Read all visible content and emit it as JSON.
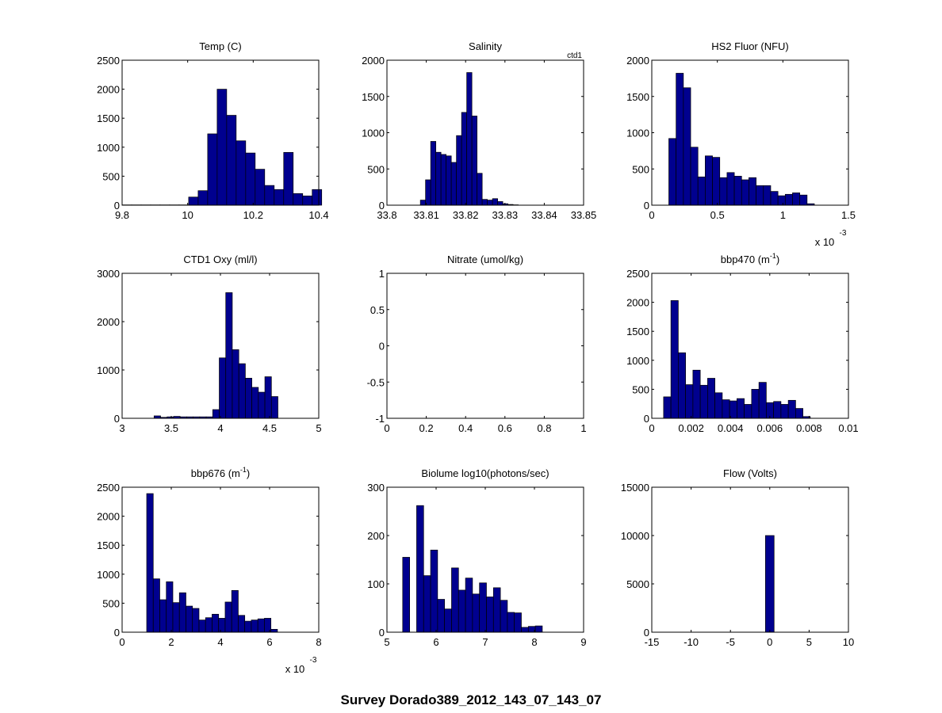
{
  "figure": {
    "suptitle": "Survey Dorado389_2012_143_07_143_07",
    "bar_color": "#00008f"
  },
  "chart_data": [
    {
      "type": "bar",
      "title": "Temp (C)",
      "xlim": [
        9.8,
        10.4
      ],
      "xticks": [
        "9.8",
        "10",
        "10.2",
        "10.4"
      ],
      "ylim": [
        0,
        2500
      ],
      "yticks": [
        "0",
        "500",
        "1000",
        "1500",
        "2000",
        "2500"
      ],
      "x_multiplier": "",
      "corner_label": "",
      "bin_start": 9.8,
      "bin_width": 0.029,
      "values": [
        5,
        5,
        5,
        5,
        5,
        5,
        5,
        140,
        250,
        1230,
        2000,
        1550,
        1110,
        900,
        620,
        340,
        270,
        910,
        200,
        160,
        270
      ]
    },
    {
      "type": "bar",
      "title": "Salinity",
      "xlim": [
        33.8,
        33.85
      ],
      "xticks": [
        "33.8",
        "33.81",
        "33.82",
        "33.83",
        "33.84",
        "33.85"
      ],
      "ylim": [
        0,
        2000
      ],
      "yticks": [
        "0",
        "500",
        "1000",
        "1500",
        "2000"
      ],
      "x_multiplier": "",
      "corner_label": "ctd1",
      "bin_start": 33.8085,
      "bin_width": 0.00131,
      "values": [
        70,
        350,
        880,
        730,
        700,
        680,
        590,
        960,
        1280,
        1830,
        1230,
        440,
        80,
        70,
        90,
        50,
        20,
        10,
        5
      ]
    },
    {
      "type": "bar",
      "title": "HS2 Fluor (NFU)",
      "xlim": [
        0,
        1.5
      ],
      "xticks": [
        "0",
        "0.5",
        "1",
        "1.5"
      ],
      "ylim": [
        0,
        2000
      ],
      "yticks": [
        "0",
        "500",
        "1000",
        "1500",
        "2000"
      ],
      "x_multiplier": "x 10",
      "x_multiplier_exp": "-3",
      "corner_label": "",
      "bin_start": 0.13,
      "bin_width": 0.0555,
      "values": [
        920,
        1820,
        1620,
        800,
        390,
        680,
        660,
        380,
        450,
        400,
        350,
        380,
        270,
        270,
        190,
        130,
        150,
        170,
        140,
        20
      ]
    },
    {
      "type": "bar",
      "title": "CTD1 Oxy (ml/l)",
      "xlim": [
        3,
        5
      ],
      "xticks": [
        "3",
        "3.5",
        "4",
        "4.5",
        "5"
      ],
      "ylim": [
        0,
        3000
      ],
      "yticks": [
        "0",
        "1000",
        "2000",
        "3000"
      ],
      "x_multiplier": "",
      "corner_label": "",
      "bin_start": 3.325,
      "bin_width": 0.0663,
      "values": [
        50,
        20,
        30,
        40,
        30,
        30,
        30,
        30,
        30,
        180,
        1250,
        2600,
        1420,
        1130,
        830,
        640,
        540,
        860,
        450
      ]
    },
    {
      "type": "bar",
      "title": "Nitrate (umol/kg)",
      "xlim": [
        0,
        1
      ],
      "xticks": [
        "0",
        "0.2",
        "0.4",
        "0.6",
        "0.8",
        "1"
      ],
      "ylim": [
        -1,
        1
      ],
      "yticks": [
        "-1",
        "-0.5",
        "0",
        "0.5",
        "1"
      ],
      "x_multiplier": "",
      "corner_label": "",
      "bin_start": 0,
      "bin_width": 0.05,
      "values": []
    },
    {
      "type": "bar",
      "title": "bbp470 (m",
      "title_sup": "-1",
      "title_after": ")",
      "xlim": [
        0,
        0.01
      ],
      "xticks": [
        "0",
        "0.002",
        "0.004",
        "0.006",
        "0.008",
        "0.01"
      ],
      "ylim": [
        0,
        2500
      ],
      "yticks": [
        "0",
        "500",
        "1000",
        "1500",
        "2000",
        "2500"
      ],
      "x_multiplier": "",
      "corner_label": "",
      "bin_start": 0.0006,
      "bin_width": 0.000373,
      "values": [
        370,
        2030,
        1130,
        580,
        830,
        570,
        690,
        440,
        320,
        300,
        340,
        240,
        500,
        620,
        270,
        290,
        240,
        310,
        170,
        30
      ]
    },
    {
      "type": "bar",
      "title": "bbp676 (m",
      "title_sup": "-1",
      "title_after": ")",
      "xlim": [
        0,
        8
      ],
      "xticks": [
        "0",
        "2",
        "4",
        "6",
        "8"
      ],
      "ylim": [
        0,
        2500
      ],
      "yticks": [
        "0",
        "500",
        "1000",
        "1500",
        "2000",
        "2500"
      ],
      "x_multiplier": "x 10",
      "x_multiplier_exp": "-3",
      "corner_label": "",
      "bin_start": 1.0,
      "bin_width": 0.266,
      "values": [
        2390,
        920,
        560,
        870,
        510,
        680,
        450,
        410,
        210,
        250,
        310,
        240,
        520,
        720,
        290,
        190,
        210,
        230,
        240,
        50
      ]
    },
    {
      "type": "bar",
      "title": "Biolume log10(photons/sec)",
      "xlim": [
        5,
        9
      ],
      "xticks": [
        "5",
        "6",
        "7",
        "8",
        "9"
      ],
      "ylim": [
        0,
        300
      ],
      "yticks": [
        "0",
        "100",
        "200",
        "300"
      ],
      "x_multiplier": "",
      "corner_label": "",
      "bin_start": 5.32,
      "bin_width": 0.142,
      "values": [
        155,
        0,
        262,
        117,
        170,
        68,
        48,
        133,
        87,
        112,
        79,
        102,
        73,
        92,
        66,
        41,
        40,
        10,
        12,
        13
      ]
    },
    {
      "type": "bar",
      "title": "Flow (Volts)",
      "xlim": [
        -15,
        10
      ],
      "xticks": [
        "-15",
        "-10",
        "-5",
        "0",
        "5",
        "10"
      ],
      "ylim": [
        0,
        15000
      ],
      "yticks": [
        "0",
        "5000",
        "10000",
        "15000"
      ],
      "x_multiplier": "",
      "corner_label": "",
      "bin_start": -0.55,
      "bin_width": 1.1,
      "values": [
        10000
      ]
    }
  ]
}
